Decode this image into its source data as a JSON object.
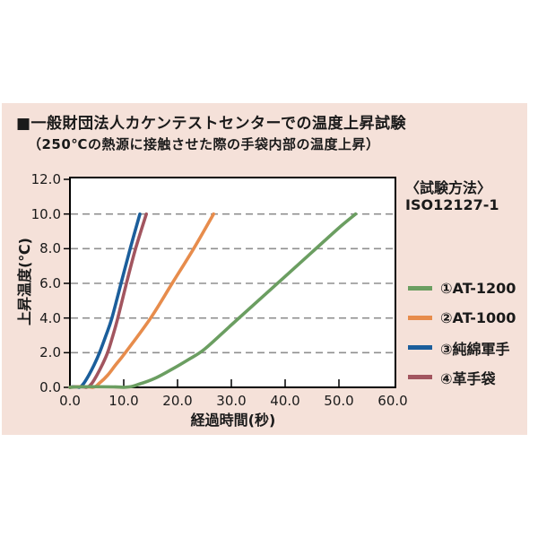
{
  "figure": {
    "background": "#ffffff",
    "panel_background": "#f5e1d9",
    "text_color": "#1a1a1a"
  },
  "title": "■一般財団法人カケンテストセンターでの温度上昇試験",
  "subtitle": "（250℃の熱源に接触させた際の手袋内部の温度上昇）",
  "method_note": {
    "line1": "〈試験方法〉",
    "line2": "ISO12127-1"
  },
  "chart_data": {
    "type": "line",
    "title": "一般財団法人カケンテストセンターでの温度上昇試験（250℃の熱源に接触させた際の手袋内部の温度上昇）",
    "xlabel": "経過時間(秒)",
    "ylabel": "上昇温度(℃)",
    "xlim": [
      0,
      60
    ],
    "ylim": [
      0,
      12
    ],
    "xticks": [
      0,
      10,
      20,
      30,
      40,
      50,
      60
    ],
    "yticks": [
      0,
      2,
      4,
      6,
      8,
      10,
      12
    ],
    "xtick_labels": [
      "0.0",
      "10.0",
      "20.0",
      "30.0",
      "40.0",
      "50.0",
      "60.0"
    ],
    "ytick_labels": [
      "0.0",
      "2.0",
      "4.0",
      "6.0",
      "8.0",
      "10.0",
      "12.0"
    ],
    "grid": "horizontal dashed gridlines at y = 2,4,6,8,10",
    "grid_color": "#8f8f8f",
    "axis_color": "#000000",
    "legend_position": "right of plot",
    "annotation": "〈試験方法〉 ISO12127-1",
    "series": [
      {
        "name": "①AT-1200",
        "color": "#6b9e61",
        "points": [
          [
            0,
            0
          ],
          [
            10,
            0
          ],
          [
            13,
            0.2
          ],
          [
            16,
            0.55
          ],
          [
            19,
            1.05
          ],
          [
            22,
            1.6
          ],
          [
            25,
            2.2
          ],
          [
            30,
            3.6
          ],
          [
            35,
            5.0
          ],
          [
            40,
            6.4
          ],
          [
            45,
            7.8
          ],
          [
            50,
            9.2
          ],
          [
            53.1,
            10
          ]
        ]
      },
      {
        "name": "②AT-1000",
        "color": "#e78c4c",
        "points": [
          [
            0,
            0
          ],
          [
            4.2,
            0
          ],
          [
            5.5,
            0.25
          ],
          [
            7,
            0.7
          ],
          [
            8.5,
            1.3
          ],
          [
            10.3,
            2
          ],
          [
            15,
            4
          ],
          [
            19,
            6
          ],
          [
            23,
            8
          ],
          [
            26.7,
            10
          ]
        ]
      },
      {
        "name": "③純綿軍手",
        "color": "#1b5e9b",
        "points": [
          [
            0,
            0
          ],
          [
            1.7,
            0
          ],
          [
            2.5,
            0.2
          ],
          [
            3.5,
            0.7
          ],
          [
            4.5,
            1.3
          ],
          [
            5.5,
            2
          ],
          [
            6.7,
            3
          ],
          [
            7.8,
            4
          ],
          [
            9.5,
            6
          ],
          [
            11.2,
            8
          ],
          [
            13,
            10
          ]
        ]
      },
      {
        "name": "④革手袋",
        "color": "#a2555f",
        "points": [
          [
            0,
            0
          ],
          [
            3,
            0
          ],
          [
            4,
            0.2
          ],
          [
            5,
            0.7
          ],
          [
            6,
            1.3
          ],
          [
            7,
            2
          ],
          [
            8,
            3
          ],
          [
            8.9,
            4
          ],
          [
            10.5,
            6
          ],
          [
            12.2,
            8
          ],
          [
            14.2,
            10
          ]
        ]
      }
    ]
  }
}
